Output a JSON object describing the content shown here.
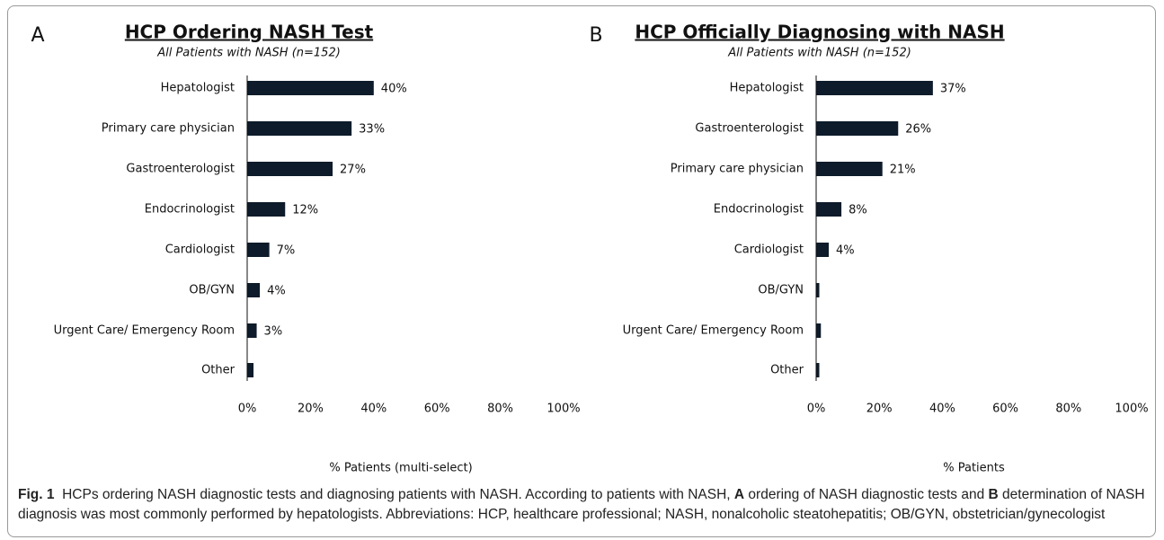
{
  "chart_data": [
    {
      "type": "bar",
      "panel": "A",
      "title": "HCP Ordering NASH Test",
      "subtitle": "All Patients with NASH (n=152)",
      "xlabel": "% Patients (multi-select)",
      "categories": [
        "Hepatologist",
        "Primary care physician",
        "Gastroenterologist",
        "Endocrinologist",
        "Cardiologist",
        "OB/GYN",
        "Urgent Care/ Emergency Room",
        "Other"
      ],
      "values": [
        40,
        33,
        27,
        12,
        7,
        4,
        3,
        2
      ],
      "value_labels": [
        "40%",
        "33%",
        "27%",
        "12%",
        "7%",
        "4%",
        "3%",
        null
      ],
      "color": "#0d1b2a",
      "xlim": [
        0,
        100
      ],
      "xticks": [
        {
          "value": 0,
          "label": "0%"
        },
        {
          "value": 20,
          "label": "20%"
        },
        {
          "value": 40,
          "label": "40%"
        },
        {
          "value": 60,
          "label": "60%"
        },
        {
          "value": 80,
          "label": "80%"
        },
        {
          "value": 100,
          "label": "100%"
        }
      ]
    },
    {
      "type": "bar",
      "panel": "B",
      "title": "HCP Officially Diagnosing with NASH",
      "subtitle": "All Patients with NASH (n=152)",
      "xlabel": "% Patients",
      "categories": [
        "Hepatologist",
        "Gastroenterologist",
        "Primary care physician",
        "Endocrinologist",
        "Cardiologist",
        "OB/GYN",
        "Urgent Care/ Emergency Room",
        "Other"
      ],
      "values": [
        37,
        26,
        21,
        8,
        4,
        1,
        1.5,
        1
      ],
      "value_labels": [
        "37%",
        "26%",
        "21%",
        "8%",
        "4%",
        null,
        null,
        null
      ],
      "color": "#0d1b2a",
      "xlim": [
        0,
        100
      ],
      "xticks": [
        {
          "value": 0,
          "label": "0%"
        },
        {
          "value": 20,
          "label": "20%"
        },
        {
          "value": 40,
          "label": "40%"
        },
        {
          "value": 60,
          "label": "60%"
        },
        {
          "value": 80,
          "label": "80%"
        },
        {
          "value": 100,
          "label": "100%"
        }
      ]
    }
  ],
  "caption": {
    "runs": [
      {
        "text": "Fig. 1",
        "bold": true
      },
      {
        "text": "  HCPs ordering NASH diagnostic tests and diagnosing patients with NASH. According to patients with NASH, ",
        "bold": false
      },
      {
        "text": "A",
        "bold": true
      },
      {
        "text": " ordering of NASH diagnostic tests and ",
        "bold": false
      },
      {
        "text": "B",
        "bold": true
      },
      {
        "text": " determination of NASH diagnosis was most commonly performed by hepatologists. Abbreviations: HCP, healthcare professional; NASH, nonalcoholic steatohepatitis; OB/GYN, obstetrician/gynecologist",
        "bold": false
      }
    ]
  }
}
